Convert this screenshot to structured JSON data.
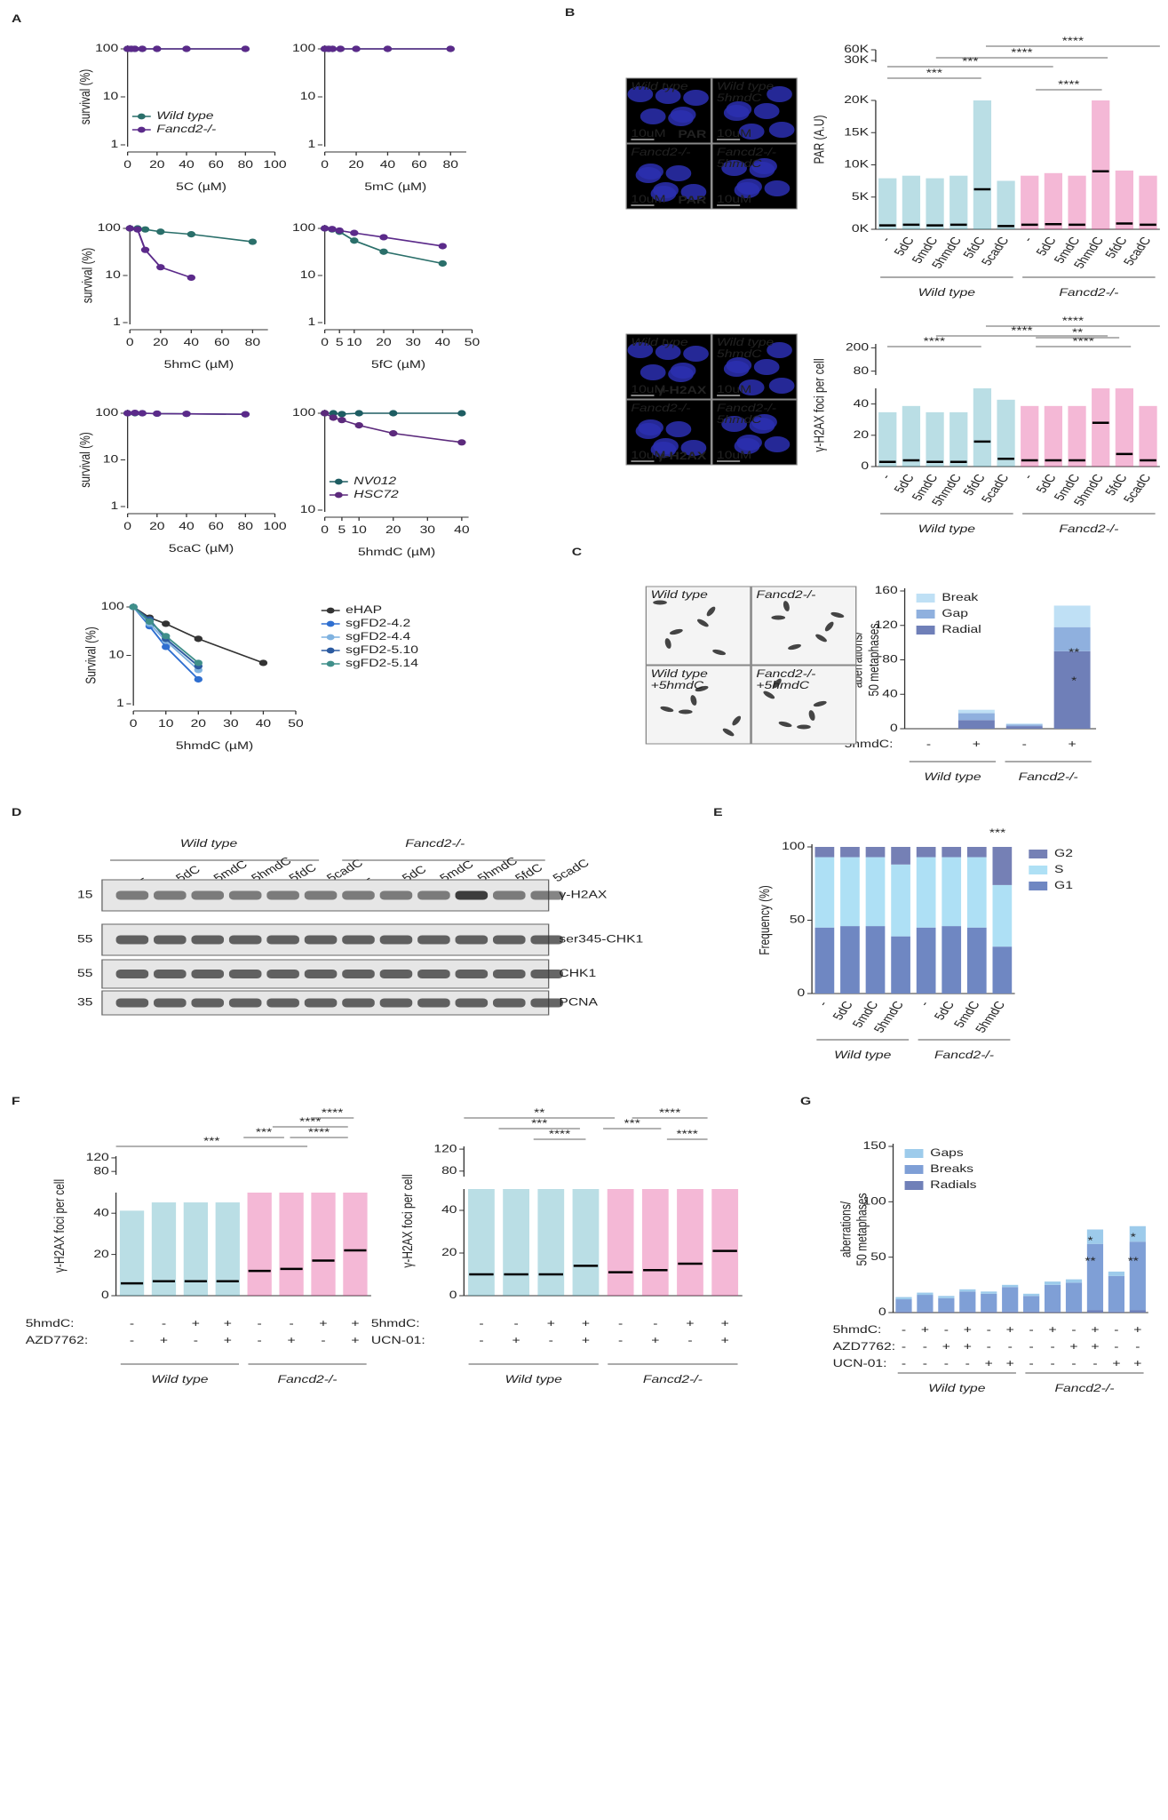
{
  "panel_labels": [
    "A",
    "B",
    "C",
    "D",
    "E",
    "F",
    "G"
  ],
  "chart_data": [
    {
      "type": "line",
      "log_y": true,
      "xlabel": "5C (µM)",
      "ylabel": "survival (%)",
      "xlim": [
        0,
        100
      ],
      "xticks": [
        0,
        20,
        40,
        60,
        80,
        100
      ],
      "ylim": [
        1,
        100
      ],
      "yticks": [
        1,
        10,
        100
      ],
      "legend": "lower left",
      "series": [
        {
          "name": "Wild type",
          "color": "#2a6f6a",
          "x": [
            0,
            2.5,
            5,
            10,
            20,
            40,
            80
          ],
          "values": [
            100,
            100,
            100,
            100,
            100,
            100,
            100
          ]
        },
        {
          "name": "Fancd2-/-",
          "color": "#5b2a8a",
          "x": [
            0,
            2.5,
            5,
            10,
            20,
            40,
            80
          ],
          "values": [
            100,
            100,
            100,
            100,
            100,
            100,
            100
          ]
        }
      ]
    },
    {
      "type": "line",
      "log_y": true,
      "xlabel": "5mC (µM)",
      "xlim": [
        0,
        90
      ],
      "xticks": [
        0,
        20,
        40,
        60,
        80
      ],
      "ylim": [
        1,
        100
      ],
      "yticks": [
        1,
        10,
        100
      ],
      "series": [
        {
          "color": "#2a6f6a",
          "x": [
            0,
            2.5,
            5,
            10,
            20,
            40,
            80
          ],
          "values": [
            100,
            100,
            100,
            100,
            100,
            100,
            100
          ]
        },
        {
          "color": "#5b2a8a",
          "x": [
            0,
            2.5,
            5,
            10,
            20,
            40,
            80
          ],
          "values": [
            100,
            100,
            100,
            100,
            100,
            100,
            100
          ]
        }
      ]
    },
    {
      "type": "line",
      "log_y": true,
      "xlabel": "5hmC (µM)",
      "ylabel": "survival (%)",
      "xlim": [
        0,
        90
      ],
      "xticks": [
        0,
        20,
        40,
        60,
        80
      ],
      "ylim": [
        1,
        100
      ],
      "yticks": [
        1,
        10,
        100
      ],
      "series": [
        {
          "color": "#2a6f6a",
          "x": [
            0,
            5,
            10,
            20,
            40,
            80
          ],
          "values": [
            100,
            100,
            95,
            85,
            75,
            52
          ]
        },
        {
          "color": "#5b2a8a",
          "x": [
            0,
            5,
            10,
            20,
            40
          ],
          "values": [
            100,
            95,
            35,
            15,
            9
          ]
        }
      ]
    },
    {
      "type": "line",
      "log_y": true,
      "xlabel": "5fC (µM)",
      "xlim": [
        0,
        50
      ],
      "xticks": [
        0,
        5,
        10,
        20,
        30,
        40,
        50
      ],
      "ylim": [
        1,
        100
      ],
      "yticks": [
        1,
        10,
        100
      ],
      "series": [
        {
          "color": "#2a6f6a",
          "x": [
            0,
            2.5,
            5,
            10,
            20,
            40
          ],
          "values": [
            100,
            95,
            85,
            55,
            32,
            18
          ]
        },
        {
          "color": "#5b2a8a",
          "x": [
            0,
            2.5,
            5,
            10,
            20,
            40
          ],
          "values": [
            100,
            97,
            90,
            80,
            65,
            42
          ]
        }
      ]
    },
    {
      "type": "line",
      "log_y": true,
      "xlabel": "5caC (µM)",
      "ylabel": "survival (%)",
      "xlim": [
        0,
        100
      ],
      "xticks": [
        0,
        20,
        40,
        60,
        80,
        100
      ],
      "ylim": [
        1,
        100
      ],
      "yticks": [
        1,
        10,
        100
      ],
      "series": [
        {
          "color": "#2a6f6a",
          "x": [
            0,
            5,
            10,
            20,
            40,
            80
          ],
          "values": [
            100,
            100,
            100,
            98,
            97,
            95
          ]
        },
        {
          "color": "#5b2a8a",
          "x": [
            0,
            5,
            10,
            20,
            40,
            80
          ],
          "values": [
            100,
            102,
            100,
            98,
            97,
            95
          ]
        }
      ]
    },
    {
      "type": "line",
      "log_y": true,
      "xlabel": "5hmdC (µM)",
      "xlim": [
        0,
        42
      ],
      "xticks": [
        0,
        5,
        10,
        20,
        30,
        40
      ],
      "ylim": [
        10,
        100
      ],
      "yticks": [
        10,
        100
      ],
      "legend": "lower left",
      "series": [
        {
          "name": "NV012",
          "color": "#1e5d62",
          "x": [
            0,
            2.5,
            5,
            10,
            20,
            40
          ],
          "values": [
            100,
            100,
            98,
            100,
            100,
            100
          ]
        },
        {
          "name": "HSC72",
          "color": "#5c2a7c",
          "x": [
            0,
            2.5,
            5,
            10,
            20,
            40
          ],
          "values": [
            100,
            90,
            85,
            75,
            62,
            50
          ]
        }
      ]
    },
    {
      "type": "line",
      "log_y": true,
      "xlabel": "5hmdC (µM)",
      "ylabel": "Survival (%)",
      "xlim": [
        0,
        50
      ],
      "xticks": [
        0,
        10,
        20,
        30,
        40,
        50
      ],
      "ylim": [
        1,
        100
      ],
      "yticks": [
        1,
        10,
        100
      ],
      "legend": "outside right",
      "series": [
        {
          "name": "eHAP",
          "color": "#333333",
          "x": [
            0,
            5,
            10,
            20,
            40
          ],
          "values": [
            100,
            60,
            45,
            22,
            7
          ]
        },
        {
          "name": "sgFD2-4.2",
          "color": "#2f6fd0",
          "x": [
            0,
            5,
            10,
            20
          ],
          "values": [
            100,
            40,
            15,
            3.2
          ]
        },
        {
          "name": "sgFD2-4.4",
          "color": "#7fb2e0",
          "x": [
            0,
            5,
            10,
            20
          ],
          "values": [
            100,
            45,
            20,
            5
          ]
        },
        {
          "name": "sgFD2-5.10",
          "color": "#2b5aa0",
          "x": [
            0,
            5,
            10,
            20
          ],
          "values": [
            100,
            55,
            22,
            6
          ]
        },
        {
          "name": "sgFD2-5.14",
          "color": "#3f8f8a",
          "x": [
            0,
            5,
            10,
            20
          ],
          "values": [
            100,
            50,
            25,
            7
          ]
        }
      ]
    },
    {
      "type": "dot",
      "ylabel": "PAR (A.U)",
      "categories": [
        "-",
        "5dC",
        "5mdC",
        "5hmdC",
        "5fdC",
        "5cadC",
        "-",
        "5dC",
        "5mdC",
        "5hmdC",
        "5fdC",
        "5cadC"
      ],
      "values": [
        600,
        700,
        600,
        700,
        6200,
        500,
        700,
        800,
        700,
        9000,
        900,
        700
      ],
      "ylim": [
        0,
        20000
      ],
      "yticks": [
        {
          "value": 0,
          "label": "0K"
        },
        {
          "value": 5000,
          "label": "5K"
        },
        {
          "value": 10000,
          "label": "10K"
        },
        {
          "value": 15000,
          "label": "15K"
        },
        {
          "value": 20000,
          "label": "20K"
        }
      ],
      "upper_ylim": [
        25000,
        60000
      ],
      "upper_yticks": [
        {
          "value": 30000,
          "label": "30K"
        },
        {
          "value": 60000,
          "label": "60K"
        }
      ],
      "groups": [
        "Wild type",
        "Fancd2-/-"
      ],
      "group_colors": [
        "#3aa0b5",
        "#e0358a"
      ],
      "annotations": [
        "****",
        "****",
        "***",
        "***",
        "****"
      ]
    },
    {
      "type": "dot",
      "ylabel": "γ-H2AX foci per cell",
      "categories": [
        "-",
        "5dC",
        "5mdC",
        "5hmdC",
        "5fdC",
        "5cadC",
        "-",
        "5dC",
        "5mdC",
        "5hmdC",
        "5fdC",
        "5cadC"
      ],
      "values": [
        3,
        4,
        3,
        3,
        16,
        5,
        4,
        4,
        4,
        28,
        8,
        4
      ],
      "ylim": [
        0,
        50
      ],
      "yticks": [
        0,
        20,
        40
      ],
      "upper_ylim": [
        60,
        220
      ],
      "upper_yticks": [
        80,
        200
      ],
      "groups": [
        "Wild type",
        "Fancd2-/-"
      ],
      "group_colors": [
        "#3aa0b5",
        "#e0358a"
      ],
      "annotations": [
        "****",
        "****",
        "****",
        "****",
        "**"
      ]
    },
    {
      "type": "stacked_bar",
      "ylabel": [
        "aberrations/",
        "50 metaphases"
      ],
      "ylim": [
        0,
        160
      ],
      "yticks": [
        0,
        40,
        80,
        120,
        160
      ],
      "rows": [
        {
          "label": "5hmdC:",
          "values": [
            "-",
            "+",
            "-",
            "+"
          ]
        }
      ],
      "groups": [
        "Wild type",
        "Fancd2-/-"
      ],
      "legend": "upper left",
      "series": [
        {
          "name": "Radial",
          "color": "#6f7fb8",
          "values": [
            0,
            10,
            3,
            90
          ]
        },
        {
          "name": "Gap",
          "color": "#8fb0de",
          "values": [
            0,
            8,
            2,
            28
          ]
        },
        {
          "name": "Break",
          "color": "#bfe0f5",
          "values": [
            0,
            4,
            1,
            25
          ]
        }
      ],
      "annotations": [
        "*",
        "**"
      ]
    },
    {
      "type": "stacked_bar",
      "ylabel": "Frequency (%)",
      "ylim": [
        0,
        100
      ],
      "yticks": [
        0,
        50,
        100
      ],
      "categories": [
        "-",
        "5dC",
        "5mdC",
        "5hmdC",
        "-",
        "5dC",
        "5mdC",
        "5hmdC"
      ],
      "groups": [
        "Wild type",
        "Fancd2-/-"
      ],
      "legend": "outside right",
      "series": [
        {
          "name": "G1",
          "color": "#6f87c2",
          "values": [
            45,
            46,
            46,
            39,
            45,
            46,
            45,
            32
          ]
        },
        {
          "name": "S",
          "color": "#aee0f5",
          "values": [
            48,
            47,
            47,
            49,
            48,
            47,
            48,
            42
          ]
        },
        {
          "name": "G2",
          "color": "#7580b5",
          "values": [
            7,
            7,
            7,
            12,
            7,
            7,
            7,
            26
          ]
        }
      ],
      "annotations": [
        "***"
      ]
    },
    {
      "type": "dot",
      "ylabel": "γ-H2AX foci per cell",
      "values": [
        6,
        7,
        7,
        7,
        12,
        13,
        17,
        22
      ],
      "rows": [
        {
          "label": "5hmdC:",
          "values": [
            "-",
            "-",
            "+",
            "+",
            "-",
            "-",
            "+",
            "+"
          ]
        },
        {
          "label": "AZD7762:",
          "values": [
            "-",
            "+",
            "-",
            "+",
            "-",
            "+",
            "-",
            "+"
          ]
        }
      ],
      "ylim": [
        0,
        50
      ],
      "yticks": [
        0,
        20,
        40
      ],
      "upper_ylim": [
        70,
        125
      ],
      "upper_yticks": [
        80,
        120
      ],
      "groups": [
        "Wild type",
        "Fancd2-/-"
      ],
      "group_colors": [
        "#3aa0b5",
        "#e0358a"
      ],
      "annotations": [
        "***",
        "***",
        "****",
        "****",
        "****"
      ]
    },
    {
      "type": "dot",
      "ylabel": "γ-H2AX foci per cell",
      "values": [
        10,
        10,
        10,
        14,
        11,
        12,
        15,
        21
      ],
      "rows": [
        {
          "label": "5hmdC:",
          "values": [
            "-",
            "-",
            "+",
            "+",
            "-",
            "-",
            "+",
            "+"
          ]
        },
        {
          "label": "UCN-01:",
          "values": [
            "-",
            "+",
            "-",
            "+",
            "-",
            "+",
            "-",
            "+"
          ]
        }
      ],
      "ylim": [
        0,
        50
      ],
      "yticks": [
        0,
        20,
        40
      ],
      "upper_ylim": [
        70,
        125
      ],
      "upper_yticks": [
        80,
        120
      ],
      "groups": [
        "Wild type",
        "Fancd2-/-"
      ],
      "group_colors": [
        "#3aa0b5",
        "#e0358a"
      ],
      "annotations": [
        "**",
        "***",
        "****",
        "***",
        "****",
        "****"
      ]
    },
    {
      "type": "stacked_bar",
      "ylabel": [
        "aberrations/",
        "50 metaphases"
      ],
      "ylim": [
        0,
        150
      ],
      "yticks": [
        0,
        50,
        100,
        150
      ],
      "rows": [
        {
          "label": "5hmdC:",
          "values": [
            "-",
            "+",
            "-",
            "+",
            "-",
            "+",
            "-",
            "+",
            "-",
            "+",
            "-",
            "+"
          ]
        },
        {
          "label": "AZD7762:",
          "values": [
            "-",
            "-",
            "+",
            "+",
            "-",
            "-",
            "-",
            "-",
            "+",
            "+",
            "-",
            "-"
          ]
        },
        {
          "label": "UCN-01:",
          "values": [
            "-",
            "-",
            "-",
            "-",
            "+",
            "+",
            "-",
            "-",
            "-",
            "-",
            "+",
            "+"
          ]
        }
      ],
      "groups": [
        "Wild type",
        "Fancd2-/-"
      ],
      "legend": "upper left",
      "series": [
        {
          "name": "Radials",
          "color": "#7080b8",
          "values": [
            1,
            1,
            1,
            1,
            1,
            1,
            1,
            1,
            1,
            2,
            1,
            2
          ]
        },
        {
          "name": "Breaks",
          "color": "#7f9fd6",
          "values": [
            11,
            15,
            12,
            18,
            16,
            22,
            14,
            24,
            26,
            60,
            32,
            62
          ]
        },
        {
          "name": "Gaps",
          "color": "#9dcbeb",
          "values": [
            2,
            2,
            2,
            2,
            2,
            2,
            2,
            3,
            3,
            13,
            4,
            14
          ]
        }
      ],
      "annotations": [
        "*",
        "**",
        "*",
        "**"
      ]
    }
  ],
  "micrographs": [
    {
      "labels": [
        [
          "Wild type"
        ],
        [
          "Wild type",
          "5hmdC"
        ],
        [
          "Fancd2-/-"
        ],
        [
          "Fancd2-/-",
          "5hmdC"
        ]
      ],
      "stain": "PAR",
      "scale": "10uM"
    },
    {
      "labels": [
        [
          "Wild type"
        ],
        [
          "Wild type",
          "5hmdC"
        ],
        [
          "Fancd2-/-"
        ],
        [
          "Fancd2-/-",
          "5hmdC"
        ]
      ],
      "stain": "γ-H2AX",
      "scale": "10uM"
    },
    {
      "labels": [
        [
          "Wild type"
        ],
        [
          "Fancd2-/-"
        ],
        [
          "Wild type",
          "+5hmdC"
        ],
        [
          "Fancd2-/-",
          "+5hmdC"
        ]
      ]
    }
  ],
  "blot": {
    "groups": [
      "Wild type",
      "Fancd2-/-"
    ],
    "lanes": [
      "-",
      "5dC",
      "5mdC",
      "5hmdC",
      "5fdC",
      "5cadC",
      "-",
      "5dC",
      "5mdC",
      "5hmdC",
      "5fdC",
      "5cadC"
    ],
    "proteins": [
      "γ-H2AX",
      "ser345-CHK1",
      "CHK1",
      "PCNA"
    ],
    "markers": [
      15,
      55,
      55,
      35
    ]
  }
}
